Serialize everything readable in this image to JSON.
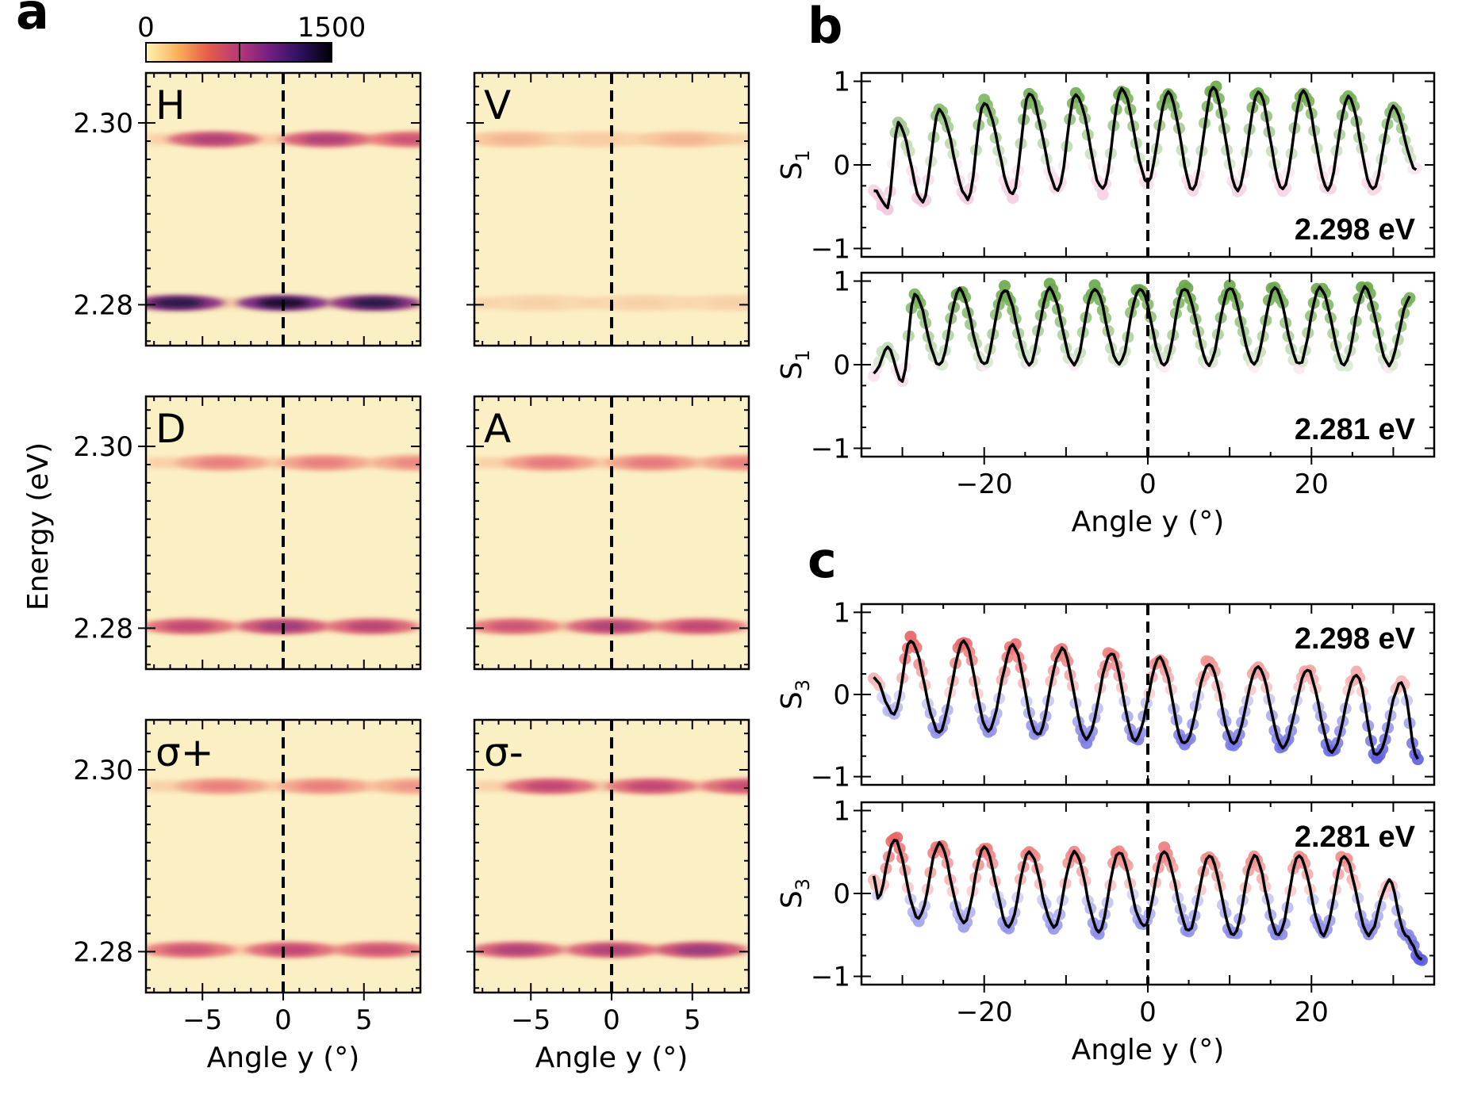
{
  "figure": {
    "panel_a_label": "a",
    "panel_b_label": "b",
    "panel_c_label": "c"
  },
  "colorbar": {
    "min_label": "0",
    "max_label": "1500",
    "colors": [
      "#fbf5b4",
      "#f9b25b",
      "#e65d48",
      "#b73779",
      "#711f81",
      "#2c115f",
      "#000004"
    ]
  },
  "colors": {
    "background_map": "#fbefc3",
    "dashed_line": "#000000",
    "s1_positive": "#4f9a2a",
    "s1_negative": "#e89ac3",
    "s3_positive": "#e01b1b",
    "s3_negative": "#2b2bd6",
    "fit_line": "#000000"
  },
  "chart_data": [
    {
      "type": "heatmap",
      "panel": "a",
      "xlabel": "Angle y (°)",
      "ylabel": "Energy (eV)",
      "xlim": [
        -8.5,
        8.5
      ],
      "ylim": [
        2.2755,
        2.3055
      ],
      "x_ticks": [
        -5,
        0,
        5
      ],
      "x_tick_labels": [
        "−5",
        "0",
        "5"
      ],
      "y_ticks": [
        2.28,
        2.3
      ],
      "y_tick_labels": [
        "2.28",
        "2.30"
      ],
      "dashed_line_x": 0,
      "maps": [
        {
          "label": "H",
          "upper_band": {
            "energy": 2.2982,
            "lobes": [
              {
                "x": -4.3,
                "i": 0.55
              },
              {
                "x": 2.7,
                "i": 0.55
              },
              {
                "x": 8.0,
                "i": 0.45
              }
            ]
          },
          "lower_band": {
            "energy": 2.2802,
            "lobes": [
              {
                "x": -6.5,
                "i": 0.95
              },
              {
                "x": 0.0,
                "i": 1.0
              },
              {
                "x": 5.7,
                "i": 0.95
              }
            ]
          }
        },
        {
          "label": "V",
          "upper_band": {
            "energy": 2.2982,
            "lobes": [
              {
                "x": -6.0,
                "i": 0.18
              },
              {
                "x": -1.0,
                "i": 0.12
              },
              {
                "x": 4.5,
                "i": 0.18
              }
            ]
          },
          "lower_band": {
            "energy": 2.2802,
            "lobes": [
              {
                "x": -4.5,
                "i": 0.1
              },
              {
                "x": 2.0,
                "i": 0.1
              },
              {
                "x": 7.5,
                "i": 0.1
              }
            ]
          }
        },
        {
          "label": "D",
          "upper_band": {
            "energy": 2.2982,
            "lobes": [
              {
                "x": -3.8,
                "i": 0.3
              },
              {
                "x": 2.5,
                "i": 0.3
              },
              {
                "x": 8.3,
                "i": 0.28
              }
            ]
          },
          "lower_band": {
            "energy": 2.2802,
            "lobes": [
              {
                "x": -5.8,
                "i": 0.5
              },
              {
                "x": 0.0,
                "i": 0.6
              },
              {
                "x": 5.5,
                "i": 0.52
              }
            ]
          }
        },
        {
          "label": "A",
          "upper_band": {
            "energy": 2.2982,
            "lobes": [
              {
                "x": -3.8,
                "i": 0.32
              },
              {
                "x": 2.5,
                "i": 0.32
              },
              {
                "x": 8.3,
                "i": 0.3
              }
            ]
          },
          "lower_band": {
            "energy": 2.2802,
            "lobes": [
              {
                "x": -6.0,
                "i": 0.45
              },
              {
                "x": 0.0,
                "i": 0.55
              },
              {
                "x": 5.5,
                "i": 0.5
              }
            ]
          }
        },
        {
          "label": "σ+",
          "upper_band": {
            "energy": 2.2982,
            "lobes": [
              {
                "x": -3.8,
                "i": 0.3
              },
              {
                "x": 2.5,
                "i": 0.3
              },
              {
                "x": 8.3,
                "i": 0.25
              }
            ]
          },
          "lower_band": {
            "energy": 2.2802,
            "lobes": [
              {
                "x": -5.8,
                "i": 0.45
              },
              {
                "x": 0.5,
                "i": 0.5
              },
              {
                "x": 6.0,
                "i": 0.45
              }
            ]
          }
        },
        {
          "label": "σ-",
          "upper_band": {
            "energy": 2.2982,
            "lobes": [
              {
                "x": -3.8,
                "i": 0.5
              },
              {
                "x": 2.5,
                "i": 0.5
              },
              {
                "x": 8.3,
                "i": 0.48
              }
            ]
          },
          "lower_band": {
            "energy": 2.2802,
            "lobes": [
              {
                "x": -5.8,
                "i": 0.55
              },
              {
                "x": 0.0,
                "i": 0.55
              },
              {
                "x": 5.5,
                "i": 0.62
              }
            ]
          }
        }
      ]
    },
    {
      "type": "scatter",
      "panel": "b",
      "ylabel": "S",
      "ylabel_sub": "1",
      "xlabel": "Angle y (°)",
      "xlim": [
        -35,
        35
      ],
      "ylim": [
        -1.1,
        1.1
      ],
      "x_ticks": [
        -20,
        0,
        20
      ],
      "x_tick_labels": [
        "−20",
        "0",
        "20"
      ],
      "y_ticks": [
        -1,
        0,
        1
      ],
      "y_tick_labels": [
        "−1",
        "0",
        "1"
      ],
      "dashed_line_x": 0,
      "series": [
        {
          "energy_label": "2.298 eV",
          "peaks": [
            {
              "x": -30.5,
              "y": 0.5
            },
            {
              "x": -25.5,
              "y": 0.65
            },
            {
              "x": -20.0,
              "y": 0.75
            },
            {
              "x": -14.5,
              "y": 0.85
            },
            {
              "x": -8.8,
              "y": 0.85
            },
            {
              "x": -3.2,
              "y": 0.9
            },
            {
              "x": 2.5,
              "y": 0.88
            },
            {
              "x": 8.0,
              "y": 0.92
            },
            {
              "x": 13.5,
              "y": 0.88
            },
            {
              "x": 19.0,
              "y": 0.88
            },
            {
              "x": 24.5,
              "y": 0.82
            },
            {
              "x": 30.0,
              "y": 0.7
            }
          ],
          "troughs": [
            {
              "x": -33.5,
              "y": -0.3
            },
            {
              "x": -31.8,
              "y": -0.5
            },
            {
              "x": -27.5,
              "y": -0.45
            },
            {
              "x": -22.0,
              "y": -0.4
            },
            {
              "x": -16.5,
              "y": -0.35
            },
            {
              "x": -11.0,
              "y": -0.3
            },
            {
              "x": -5.5,
              "y": -0.3
            },
            {
              "x": 0.0,
              "y": -0.2
            },
            {
              "x": 5.5,
              "y": -0.3
            },
            {
              "x": 11.0,
              "y": -0.3
            },
            {
              "x": 16.5,
              "y": -0.3
            },
            {
              "x": 22.0,
              "y": -0.3
            },
            {
              "x": 27.5,
              "y": -0.3
            },
            {
              "x": 32.8,
              "y": -0.05
            }
          ]
        },
        {
          "energy_label": "2.281 eV",
          "peaks": [
            {
              "x": -31.8,
              "y": 0.2
            },
            {
              "x": -28.5,
              "y": 0.85
            },
            {
              "x": -23.0,
              "y": 0.9
            },
            {
              "x": -17.5,
              "y": 0.9
            },
            {
              "x": -12.0,
              "y": 0.92
            },
            {
              "x": -6.5,
              "y": 0.92
            },
            {
              "x": -1.0,
              "y": 0.92
            },
            {
              "x": 4.5,
              "y": 0.92
            },
            {
              "x": 10.0,
              "y": 0.92
            },
            {
              "x": 15.5,
              "y": 0.92
            },
            {
              "x": 21.0,
              "y": 0.92
            },
            {
              "x": 26.5,
              "y": 0.92
            },
            {
              "x": 32.0,
              "y": 0.8
            }
          ],
          "troughs": [
            {
              "x": -33.5,
              "y": -0.1
            },
            {
              "x": -30.0,
              "y": -0.2
            },
            {
              "x": -25.5,
              "y": 0.0
            },
            {
              "x": -20.0,
              "y": 0.0
            },
            {
              "x": -14.5,
              "y": 0.0
            },
            {
              "x": -9.0,
              "y": 0.0
            },
            {
              "x": -3.5,
              "y": 0.0
            },
            {
              "x": 2.0,
              "y": 0.0
            },
            {
              "x": 7.5,
              "y": 0.0
            },
            {
              "x": 13.0,
              "y": 0.0
            },
            {
              "x": 18.5,
              "y": 0.0
            },
            {
              "x": 24.0,
              "y": 0.0
            },
            {
              "x": 29.5,
              "y": 0.0
            }
          ]
        }
      ]
    },
    {
      "type": "scatter",
      "panel": "c",
      "ylabel": "S",
      "ylabel_sub": "3",
      "xlabel": "Angle y (°)",
      "xlim": [
        -35,
        35
      ],
      "ylim": [
        -1.1,
        1.1
      ],
      "x_ticks": [
        -20,
        0,
        20
      ],
      "x_tick_labels": [
        "−20",
        "0",
        "20"
      ],
      "y_ticks": [
        -1,
        0,
        1
      ],
      "y_tick_labels": [
        "−1",
        "0",
        "1"
      ],
      "dashed_line_x": 0,
      "series": [
        {
          "energy_label": "2.298 eV",
          "peaks": [
            {
              "x": -33.5,
              "y": 0.2
            },
            {
              "x": -29.0,
              "y": 0.65
            },
            {
              "x": -22.5,
              "y": 0.65
            },
            {
              "x": -16.5,
              "y": 0.6
            },
            {
              "x": -10.5,
              "y": 0.55
            },
            {
              "x": -4.5,
              "y": 0.5
            },
            {
              "x": 1.5,
              "y": 0.45
            },
            {
              "x": 7.5,
              "y": 0.38
            },
            {
              "x": 13.5,
              "y": 0.33
            },
            {
              "x": 19.5,
              "y": 0.3
            },
            {
              "x": 25.5,
              "y": 0.25
            },
            {
              "x": 31.0,
              "y": 0.15
            }
          ],
          "troughs": [
            {
              "x": -31.0,
              "y": -0.25
            },
            {
              "x": -25.5,
              "y": -0.45
            },
            {
              "x": -19.5,
              "y": -0.45
            },
            {
              "x": -13.5,
              "y": -0.5
            },
            {
              "x": -7.5,
              "y": -0.55
            },
            {
              "x": -1.5,
              "y": -0.55
            },
            {
              "x": 4.5,
              "y": -0.6
            },
            {
              "x": 10.5,
              "y": -0.6
            },
            {
              "x": 16.5,
              "y": -0.65
            },
            {
              "x": 22.5,
              "y": -0.7
            },
            {
              "x": 28.0,
              "y": -0.75
            },
            {
              "x": 33.0,
              "y": -0.8
            }
          ]
        },
        {
          "energy_label": "2.281 eV",
          "peaks": [
            {
              "x": -33.5,
              "y": 0.2
            },
            {
              "x": -31.0,
              "y": 0.65
            },
            {
              "x": -25.5,
              "y": 0.6
            },
            {
              "x": -20.0,
              "y": 0.55
            },
            {
              "x": -14.5,
              "y": 0.5
            },
            {
              "x": -9.0,
              "y": 0.5
            },
            {
              "x": -3.5,
              "y": 0.5
            },
            {
              "x": 2.0,
              "y": 0.5
            },
            {
              "x": 7.5,
              "y": 0.45
            },
            {
              "x": 13.0,
              "y": 0.45
            },
            {
              "x": 18.5,
              "y": 0.45
            },
            {
              "x": 24.0,
              "y": 0.45
            },
            {
              "x": 29.5,
              "y": 0.15
            }
          ],
          "troughs": [
            {
              "x": -33.0,
              "y": -0.05
            },
            {
              "x": -28.0,
              "y": -0.3
            },
            {
              "x": -22.5,
              "y": -0.35
            },
            {
              "x": -17.0,
              "y": -0.4
            },
            {
              "x": -11.5,
              "y": -0.4
            },
            {
              "x": -6.0,
              "y": -0.45
            },
            {
              "x": -0.5,
              "y": -0.4
            },
            {
              "x": 5.0,
              "y": -0.45
            },
            {
              "x": 10.5,
              "y": -0.5
            },
            {
              "x": 16.0,
              "y": -0.5
            },
            {
              "x": 21.5,
              "y": -0.5
            },
            {
              "x": 27.0,
              "y": -0.5
            },
            {
              "x": 31.5,
              "y": -0.5
            },
            {
              "x": 33.5,
              "y": -0.8
            }
          ]
        }
      ]
    }
  ]
}
